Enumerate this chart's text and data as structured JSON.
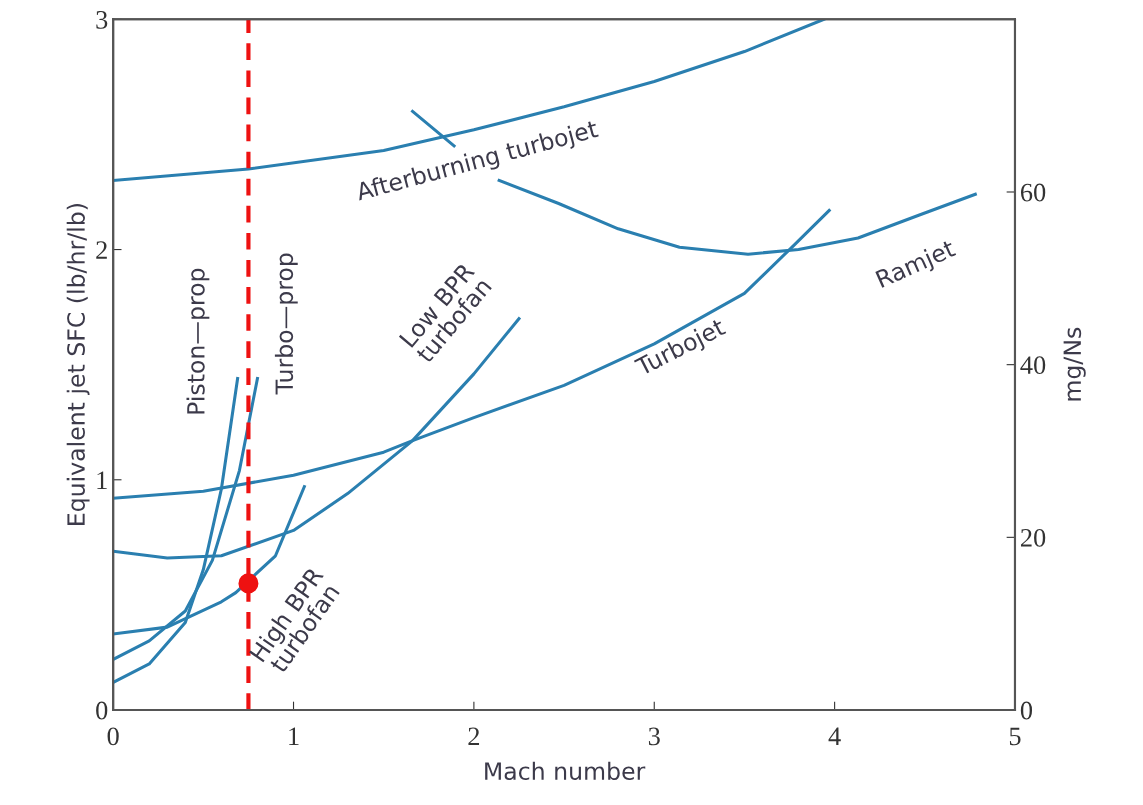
{
  "chart_data": {
    "type": "line",
    "xlabel": "Mach number",
    "ylabel": "Equivalent jet SFC (lb/hr/lb)",
    "y2label": "mg/Ns",
    "xlim": [
      0,
      5
    ],
    "xticks": [
      0,
      1,
      2,
      3,
      4,
      5
    ],
    "ylim": [
      0,
      3
    ],
    "yticks": [
      0,
      1,
      2,
      3
    ],
    "y2lim": [
      0,
      80
    ],
    "y2ticks": [
      0,
      20,
      40,
      60
    ],
    "grid": false,
    "marker": "none",
    "line_style": "solid",
    "series": [
      {
        "name": "Afterburning turbojet",
        "color": "#2a7fb0",
        "x": [
          0,
          0.75,
          1.5,
          2,
          2.5,
          3,
          3.5,
          3.94
        ],
        "values": [
          2.3,
          2.35,
          2.43,
          2.52,
          2.62,
          2.73,
          2.86,
          3.0
        ]
      },
      {
        "name": "Ramjet",
        "color": "#2a7fb0",
        "x": [
          1.66,
          1.89,
          2.0,
          2.14,
          2.47,
          2.8,
          3.14,
          3.52,
          3.8,
          4.13,
          4.47,
          4.78
        ],
        "values": [
          2.6,
          2.45,
          null,
          2.3,
          2.2,
          2.09,
          2.01,
          1.98,
          2.0,
          2.05,
          2.15,
          2.24
        ]
      },
      {
        "name": "Turbojet",
        "color": "#2a7fb0",
        "x": [
          0,
          0.5,
          1,
          1.5,
          1.66,
          2,
          2.5,
          3,
          3.5,
          3.75,
          3.97
        ],
        "values": [
          0.92,
          0.95,
          1.02,
          1.12,
          1.17,
          1.27,
          1.41,
          1.59,
          1.81,
          2.0,
          2.17
        ]
      },
      {
        "name": "Low BPR\nturbofan",
        "color": "#2a7fb0",
        "x": [
          0,
          0.3,
          0.6,
          1,
          1.3,
          1.66,
          2,
          2.25
        ],
        "values": [
          0.69,
          0.66,
          0.67,
          0.78,
          0.94,
          1.17,
          1.46,
          1.7
        ]
      },
      {
        "name": "High BPR\nturbofan",
        "color": "#2a7fb0",
        "x": [
          0,
          0.3,
          0.6,
          0.68,
          0.9,
          1.06
        ],
        "values": [
          0.33,
          0.36,
          0.47,
          0.51,
          0.67,
          0.97
        ]
      },
      {
        "name": "Piston—prop",
        "color": "#2a7fb0",
        "x": [
          0,
          0.2,
          0.4,
          0.5,
          0.6,
          0.69
        ],
        "values": [
          0.12,
          0.2,
          0.38,
          0.61,
          0.96,
          1.44
        ]
      },
      {
        "name": "Turbo—prop",
        "color": "#2a7fb0",
        "x": [
          0,
          0.2,
          0.4,
          0.55,
          0.7,
          0.8
        ],
        "values": [
          0.22,
          0.3,
          0.43,
          0.65,
          1.04,
          1.44
        ]
      },
      {
        "type": "scatter",
        "marker": "circle",
        "color": "#ee1111",
        "x": [
          0.75
        ],
        "values": [
          0.55
        ]
      }
    ],
    "ref_lines": [
      {
        "axis": "x",
        "value": 0.75,
        "color": "#ee1111",
        "line_style": "dashed"
      }
    ]
  }
}
